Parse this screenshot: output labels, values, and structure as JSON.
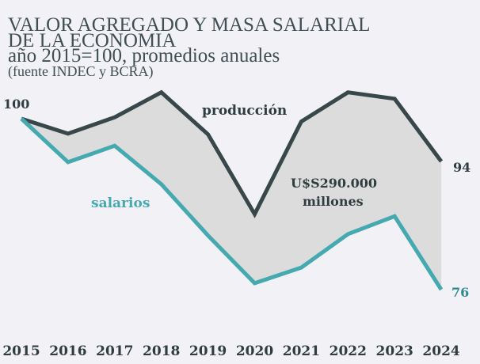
{
  "chart_data": {
    "type": "line",
    "title": "VALOR AGREGADO Y MASA SALARIAL",
    "title_line2": "DE LA ECONOMIA",
    "subtitle": "año 2015=100, promedios anuales",
    "source": "(fuente INDEC y BCRA)",
    "xlabel": "",
    "ylabel": "",
    "ylim": [
      70,
      108
    ],
    "x": [
      "2015",
      "2016",
      "2017",
      "2018",
      "2019",
      "2020",
      "2021",
      "2022",
      "2023",
      "2024"
    ],
    "series": [
      {
        "name": "producción",
        "color": "#37474a",
        "values": [
          100,
          97.9,
          100.2,
          103.7,
          97.8,
          86.6,
          99.6,
          103.7,
          102.8,
          94
        ]
      },
      {
        "name": "salarios",
        "color": "#45a9b0",
        "values": [
          100,
          93.9,
          96.2,
          90.8,
          83.6,
          76.9,
          79.1,
          83.8,
          86.3,
          76
        ]
      }
    ],
    "gap_fill_color": "#dcdcdc",
    "annotations": {
      "start_label": "100",
      "end_produccion": "94",
      "end_salarios": "76",
      "gap_line1": "U$S290.000",
      "gap_line2": "millones"
    },
    "grid": false
  }
}
